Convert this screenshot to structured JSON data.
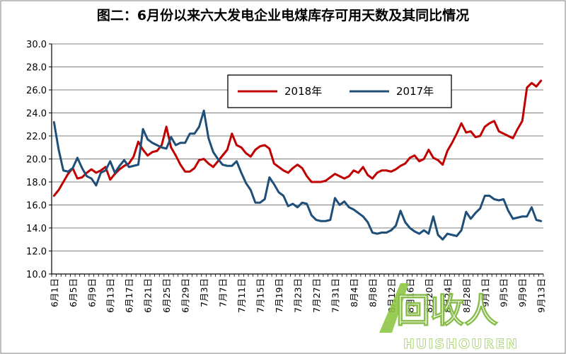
{
  "chart_data": {
    "type": "line",
    "title": "图二：6月份以来六大发电企业电煤库存可用天数及其同比情况",
    "xlabel": "",
    "ylabel": "",
    "ylim": [
      10.0,
      30.0
    ],
    "y_ticks": [
      "10.0",
      "12.0",
      "14.0",
      "16.0",
      "18.0",
      "20.0",
      "22.0",
      "24.0",
      "26.0",
      "28.0",
      "30.0"
    ],
    "grid": true,
    "legend_position": "top-right",
    "x_count": 105,
    "x_ticks": [
      {
        "index": 0,
        "label": "6月1日"
      },
      {
        "index": 4,
        "label": "6月5日"
      },
      {
        "index": 8,
        "label": "6月9日"
      },
      {
        "index": 12,
        "label": "6月13日"
      },
      {
        "index": 16,
        "label": "6月17日"
      },
      {
        "index": 20,
        "label": "6月21日"
      },
      {
        "index": 24,
        "label": "6月25日"
      },
      {
        "index": 28,
        "label": "6月29日"
      },
      {
        "index": 32,
        "label": "7月3日"
      },
      {
        "index": 36,
        "label": "7月7日"
      },
      {
        "index": 40,
        "label": "7月11日"
      },
      {
        "index": 44,
        "label": "7月15日"
      },
      {
        "index": 48,
        "label": "7月19日"
      },
      {
        "index": 52,
        "label": "7月23日"
      },
      {
        "index": 56,
        "label": "7月27日"
      },
      {
        "index": 60,
        "label": "7月31日"
      },
      {
        "index": 64,
        "label": "8月4日"
      },
      {
        "index": 68,
        "label": "8月8日"
      },
      {
        "index": 72,
        "label": "8月12日"
      },
      {
        "index": 76,
        "label": "8月16日"
      },
      {
        "index": 80,
        "label": "8月20日"
      },
      {
        "index": 84,
        "label": "8月24日"
      },
      {
        "index": 88,
        "label": "8月28日"
      },
      {
        "index": 92,
        "label": "9月1日"
      },
      {
        "index": 96,
        "label": "9月5日"
      },
      {
        "index": 100,
        "label": "9月9日"
      },
      {
        "index": 104,
        "label": "9月13日"
      }
    ],
    "series": [
      {
        "name": "2018年",
        "color": "#c00000",
        "values": [
          16.8,
          17.3,
          18.0,
          18.7,
          19.2,
          18.3,
          18.4,
          18.8,
          19.1,
          18.8,
          19.0,
          19.3,
          18.2,
          18.7,
          19.1,
          19.4,
          19.6,
          20.2,
          21.5,
          20.8,
          20.3,
          20.6,
          20.7,
          21.2,
          22.8,
          21.0,
          20.3,
          19.5,
          18.9,
          18.9,
          19.2,
          19.9,
          20.0,
          19.6,
          19.3,
          19.8,
          20.3,
          20.8,
          22.2,
          21.2,
          21.0,
          20.5,
          20.2,
          20.8,
          21.1,
          21.2,
          20.9,
          19.6,
          19.3,
          19.0,
          18.8,
          19.2,
          19.5,
          19.2,
          18.5,
          18.0,
          18.0,
          18.0,
          18.1,
          18.4,
          18.7,
          18.5,
          18.3,
          18.5,
          19.0,
          18.8,
          19.3,
          18.6,
          18.3,
          18.8,
          19.0,
          19.0,
          18.9,
          19.1,
          19.4,
          19.6,
          20.1,
          20.3,
          19.8,
          20.0,
          20.8,
          20.1,
          19.9,
          19.5,
          20.7,
          21.4,
          22.2,
          23.1,
          22.3,
          22.4,
          21.9,
          22.0,
          22.8,
          23.1,
          23.3,
          22.4,
          22.2,
          22.0,
          21.8,
          22.6,
          23.3,
          26.2,
          26.6,
          26.3,
          26.8
        ]
      },
      {
        "name": "2017年",
        "color": "#1f4e79",
        "values": [
          23.2,
          20.8,
          19.0,
          18.9,
          19.2,
          20.1,
          19.2,
          18.5,
          18.3,
          17.7,
          18.8,
          19.0,
          19.8,
          18.8,
          19.4,
          19.9,
          19.3,
          19.4,
          19.5,
          22.6,
          21.7,
          21.4,
          21.2,
          21.0,
          20.9,
          21.9,
          21.2,
          21.4,
          21.4,
          22.2,
          22.2,
          22.8,
          24.2,
          21.8,
          20.6,
          20.0,
          19.5,
          19.4,
          19.4,
          19.8,
          18.8,
          17.9,
          17.3,
          16.2,
          16.2,
          16.5,
          18.4,
          17.8,
          17.1,
          16.8,
          15.9,
          16.1,
          15.8,
          16.2,
          16.1,
          15.1,
          14.7,
          14.6,
          14.6,
          14.7,
          16.6,
          16.0,
          16.3,
          15.8,
          15.6,
          15.3,
          15.0,
          14.5,
          13.6,
          13.5,
          13.6,
          13.6,
          13.8,
          14.2,
          15.5,
          14.5,
          14.0,
          13.7,
          13.5,
          13.8,
          13.5,
          15.0,
          13.4,
          13.0,
          13.5,
          13.4,
          13.3,
          13.8,
          15.4,
          14.8,
          15.3,
          15.7,
          16.8,
          16.8,
          16.5,
          16.4,
          16.5,
          15.5,
          14.8,
          14.9,
          15.0,
          15.0,
          15.8,
          14.7,
          14.6
        ]
      }
    ],
    "watermark": {
      "main": "回收人",
      "sub": "HUISHOUREN"
    }
  }
}
